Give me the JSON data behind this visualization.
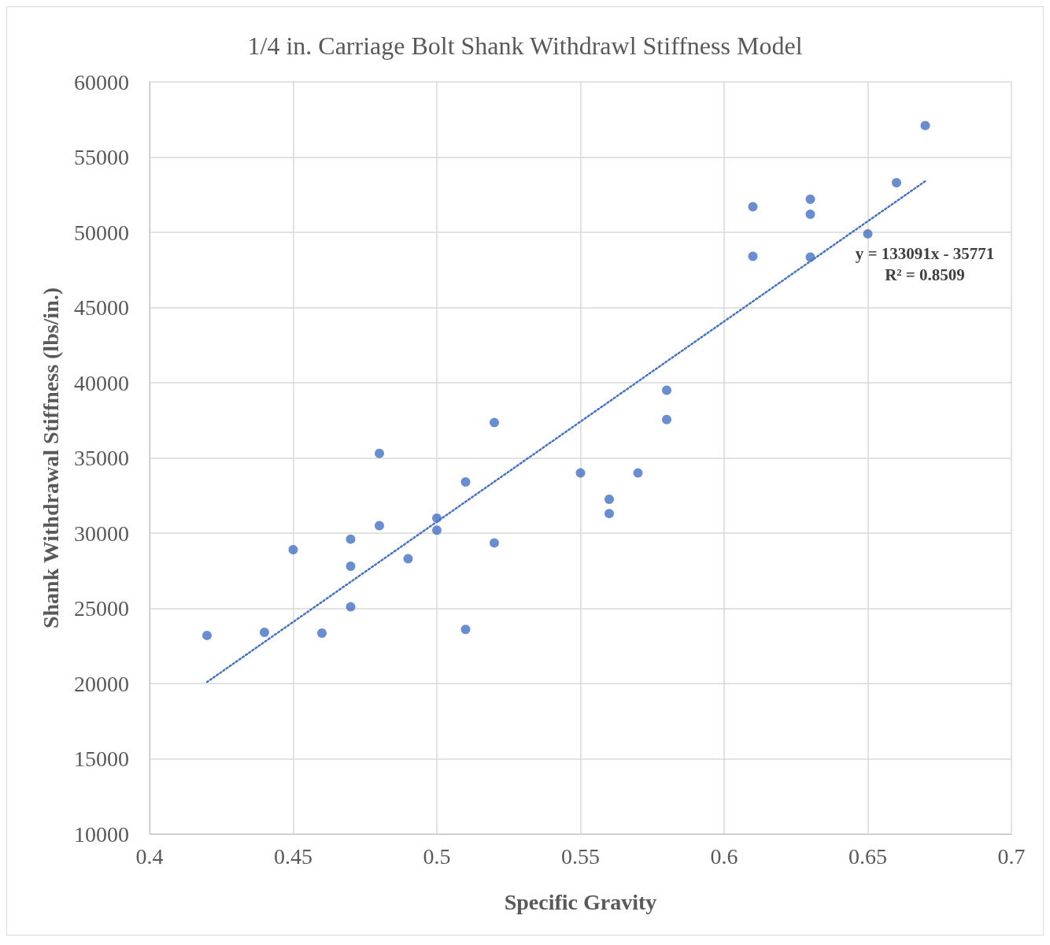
{
  "chart_data": {
    "type": "scatter",
    "title": "1/4 in. Carriage Bolt Shank Withdrawl Stiffness Model",
    "xlabel": "Specific Gravity",
    "ylabel": "Shank Withdrawal Stiffness (lbs/in.)",
    "xlim": [
      0.4,
      0.7
    ],
    "xticks": [
      0.4,
      0.45,
      0.5,
      0.55,
      0.6,
      0.65,
      0.7
    ],
    "ylim": [
      10000,
      60000
    ],
    "yticks": [
      10000,
      15000,
      20000,
      25000,
      30000,
      35000,
      40000,
      45000,
      50000,
      55000,
      60000
    ],
    "grid": true,
    "marker": "circle",
    "series": [
      {
        "color": "#4472c4",
        "x": [
          0.42,
          0.44,
          0.45,
          0.46,
          0.47,
          0.47,
          0.47,
          0.48,
          0.48,
          0.49,
          0.5,
          0.5,
          0.51,
          0.51,
          0.52,
          0.52,
          0.55,
          0.56,
          0.56,
          0.57,
          0.58,
          0.58,
          0.61,
          0.61,
          0.63,
          0.63,
          0.63,
          0.65,
          0.66,
          0.67
        ],
        "values": [
          23200,
          23400,
          28900,
          23350,
          29600,
          27800,
          25100,
          35300,
          30500,
          28300,
          31000,
          30200,
          33400,
          23600,
          37350,
          29350,
          34000,
          32250,
          31300,
          34000,
          39500,
          37550,
          51700,
          48400,
          52200,
          51200,
          48350,
          49900,
          53300,
          57100
        ]
      },
      {
        "type": "line",
        "color": "#4472c4",
        "line_style": "dotted",
        "marker": "none",
        "x": [
          0.42,
          0.67
        ],
        "values": [
          20100,
          53400
        ]
      }
    ],
    "annotations": [
      "y = 133091x - 35771",
      "R² = 0.8509"
    ]
  }
}
